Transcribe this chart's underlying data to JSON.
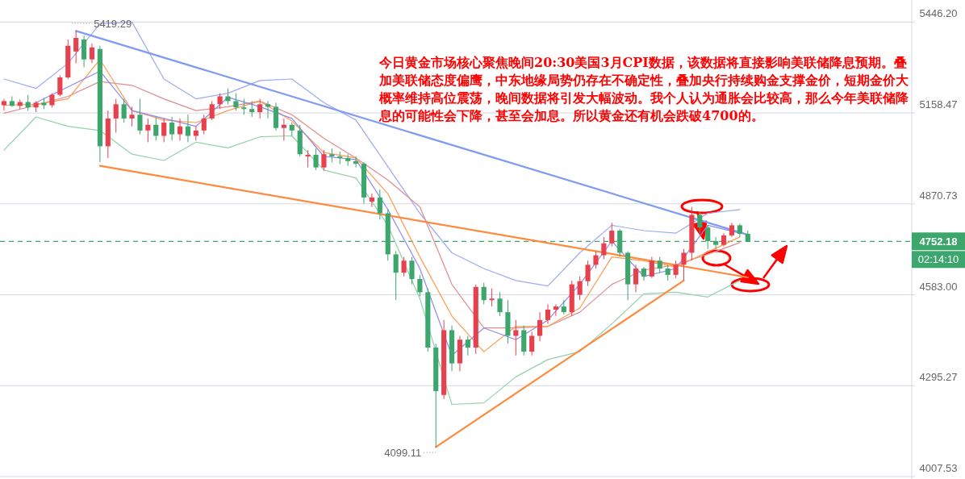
{
  "chart_data": {
    "type": "candlestick",
    "categories": [
      null,
      null,
      null,
      null,
      null,
      null,
      null,
      null,
      null,
      null,
      null,
      null,
      null,
      null,
      null,
      null,
      null,
      null,
      null,
      null,
      null,
      null,
      null,
      null,
      null,
      null,
      null,
      null,
      null,
      null,
      null,
      null,
      null,
      null,
      null,
      null,
      null,
      null,
      null,
      null,
      null,
      null,
      null,
      null,
      null,
      null,
      null,
      null,
      null,
      null,
      null,
      null,
      null,
      null,
      null,
      null,
      null,
      null,
      null,
      null,
      null,
      null,
      null,
      null,
      null,
      null,
      null,
      null,
      null,
      null,
      null,
      null,
      null,
      null,
      null,
      null,
      null,
      null,
      null,
      null,
      null,
      null,
      null,
      null,
      null,
      null,
      null,
      null,
      null,
      null,
      null,
      null,
      null,
      null,
      null,
      null,
      null,
      null,
      null,
      null,
      null,
      null,
      null,
      null,
      null,
      null,
      null,
      null,
      null,
      null,
      null,
      null,
      null,
      null
    ],
    "ohlc": [
      [
        5183,
        5203,
        5166,
        5196
      ],
      [
        5196,
        5211,
        5178,
        5181
      ],
      [
        5181,
        5201,
        5171,
        5193
      ],
      [
        5193,
        5216,
        5166,
        5176
      ],
      [
        5176,
        5196,
        5161,
        5191
      ],
      [
        5191,
        5206,
        5171,
        5183
      ],
      [
        5183,
        5221,
        5176,
        5216
      ],
      [
        5216,
        5278,
        5211,
        5271
      ],
      [
        5271,
        5391,
        5266,
        5371
      ],
      [
        5353,
        5419.29,
        5316,
        5396
      ],
      [
        5391,
        5403,
        5303,
        5328
      ],
      [
        5328,
        5378,
        5316,
        5366
      ],
      [
        5361,
        5371,
        5003,
        5053
      ],
      [
        5053,
        5166,
        5016,
        5141
      ],
      [
        5141,
        5203,
        5096,
        5186
      ],
      [
        5186,
        5203,
        5128,
        5141
      ],
      [
        5141,
        5178,
        5116,
        5153
      ],
      [
        5153,
        5203,
        5091,
        5103
      ],
      [
        5103,
        5141,
        5066,
        5121
      ],
      [
        5121,
        5146,
        5071,
        5086
      ],
      [
        5086,
        5141,
        5066,
        5128
      ],
      [
        5128,
        5146,
        5071,
        5091
      ],
      [
        5091,
        5141,
        5071,
        5116
      ],
      [
        5116,
        5153,
        5066,
        5086
      ],
      [
        5086,
        5116,
        5071,
        5103
      ],
      [
        5103,
        5153,
        5091,
        5141
      ],
      [
        5141,
        5196,
        5136,
        5186
      ],
      [
        5186,
        5221,
        5171,
        5211
      ],
      [
        5211,
        5236,
        5186,
        5196
      ],
      [
        5196,
        5221,
        5166,
        5176
      ],
      [
        5176,
        5203,
        5153,
        5171
      ],
      [
        5171,
        5196,
        5146,
        5161
      ],
      [
        5161,
        5203,
        5141,
        5186
      ],
      [
        5186,
        5196,
        5141,
        5178
      ],
      [
        5178,
        5191,
        5103,
        5111
      ],
      [
        5111,
        5141,
        5071,
        5121
      ],
      [
        5121,
        5128,
        5086,
        5103
      ],
      [
        5103,
        5121,
        5021,
        5028
      ],
      [
        5021,
        5041,
        4986,
        5026
      ],
      [
        5026,
        5046,
        4978,
        4986
      ],
      [
        4986,
        5041,
        4976,
        5028
      ],
      [
        5028,
        5046,
        5003,
        5021
      ],
      [
        5021,
        5036,
        4996,
        5016
      ],
      [
        5016,
        5028,
        4991,
        5006
      ],
      [
        5006,
        5021,
        4986,
        4998
      ],
      [
        4998,
        5003,
        4871,
        4891
      ],
      [
        4878,
        4903,
        4861,
        4891
      ],
      [
        4891,
        4916,
        4821,
        4841
      ],
      [
        4841,
        4853,
        4691,
        4711
      ],
      [
        4711,
        4721,
        4566,
        4653
      ],
      [
        4653,
        4703,
        4641,
        4691
      ],
      [
        4691,
        4703,
        4616,
        4633
      ],
      [
        4633,
        4646,
        4578,
        4591
      ],
      [
        4591,
        4603,
        4403,
        4416
      ],
      [
        4416,
        4428,
        4099.11,
        4278
      ],
      [
        4266,
        4503,
        4253,
        4471
      ],
      [
        4471,
        4486,
        4341,
        4366
      ],
      [
        4366,
        4453,
        4341,
        4441
      ],
      [
        4441,
        4453,
        4391,
        4416
      ],
      [
        4416,
        4616,
        4396,
        4608
      ],
      [
        4608,
        4621,
        4553,
        4566
      ],
      [
        4566,
        4603,
        4546,
        4571
      ],
      [
        4571,
        4591,
        4516,
        4528
      ],
      [
        4528,
        4566,
        4428,
        4453
      ],
      [
        4453,
        4503,
        4391,
        4471
      ],
      [
        4471,
        4486,
        4391,
        4403
      ],
      [
        4403,
        4466,
        4391,
        4453
      ],
      [
        4453,
        4528,
        4436,
        4503
      ],
      [
        4503,
        4553,
        4491,
        4536
      ],
      [
        4536,
        4553,
        4516,
        4546
      ],
      [
        4546,
        4566,
        4521,
        4528
      ],
      [
        4528,
        4628,
        4516,
        4616
      ],
      [
        4583,
        4641,
        4566,
        4626
      ],
      [
        4626,
        4691,
        4611,
        4678
      ],
      [
        4678,
        4721,
        4666,
        4708
      ],
      [
        4708,
        4766,
        4696,
        4746
      ],
      [
        4746,
        4811,
        4736,
        4786
      ],
      [
        4786,
        4791,
        4703,
        4716
      ],
      [
        4716,
        4721,
        4566,
        4616
      ],
      [
        4616,
        4678,
        4591,
        4666
      ],
      [
        4666,
        4671,
        4628,
        4641
      ],
      [
        4641,
        4703,
        4636,
        4691
      ],
      [
        4691,
        4703,
        4653,
        4666
      ],
      [
        4666,
        4678,
        4628,
        4646
      ],
      [
        4646,
        4691,
        4636,
        4678
      ],
      [
        4678,
        4728,
        4628,
        4716
      ],
      [
        4716,
        4861,
        4691,
        4836
      ],
      [
        4836,
        4846,
        4778,
        4796
      ],
      [
        4796,
        4803,
        4728,
        4753
      ],
      [
        4753,
        4766,
        4728,
        4741
      ],
      [
        4741,
        4778,
        4736,
        4771
      ],
      [
        4771,
        4811,
        4766,
        4803
      ],
      [
        4803,
        4808,
        4766,
        4776
      ],
      [
        4776,
        4786,
        4750,
        4752.18
      ],
      null,
      null,
      null,
      null,
      null,
      null,
      null,
      null,
      null,
      null,
      null,
      null,
      null,
      null,
      null,
      null,
      null,
      null,
      null,
      null
    ],
    "colors": [
      "#e8414e",
      "#3da66d",
      "#e8414e",
      "#3da66d",
      "#e8414e",
      "#3da66d",
      "#e8414e",
      "#e8414e",
      "#e8414e",
      "#e8414e",
      "#3da66d",
      "#e8414e",
      "#3da66d",
      "#e8414e",
      "#e8414e",
      "#3da66d",
      "#e8414e",
      "#3da66d",
      "#e8414e",
      "#3da66d",
      "#e8414e",
      "#3da66d",
      "#e8414e",
      "#3da66d",
      "#e8414e",
      "#e8414e",
      "#e8414e",
      "#e8414e",
      "#3da66d",
      "#3da66d",
      "#3da66d",
      "#3da66d",
      "#e8414e",
      "#3da66d",
      "#3da66d",
      "#e8414e",
      "#3da66d",
      "#3da66d",
      "#e8414e",
      "#3da66d",
      "#e8414e",
      "#3da66d",
      "#3da66d",
      "#3da66d",
      "#3da66d",
      "#3da66d",
      "#e8414e",
      "#3da66d",
      "#3da66d",
      "#3da66d",
      "#e8414e",
      "#3da66d",
      "#3da66d",
      "#3da66d",
      "#3da66d",
      "#e8414e",
      "#3da66d",
      "#e8414e",
      "#3da66d",
      "#e8414e",
      "#3da66d",
      "#e8414e",
      "#3da66d",
      "#3da66d",
      "#e8414e",
      "#3da66d",
      "#e8414e",
      "#e8414e",
      "#e8414e",
      "#e8414e",
      "#3da66d",
      "#e8414e",
      "#e8414e",
      "#e8414e",
      "#e8414e",
      "#e8414e",
      "#e8414e",
      "#3da66d",
      "#3da66d",
      "#e8414e",
      "#3da66d",
      "#e8414e",
      "#3da66d",
      "#3da66d",
      "#e8414e",
      "#e8414e",
      "#e8414e",
      "#3da66d",
      "#3da66d",
      "#3da66d",
      "#e8414e",
      "#e8414e",
      "#3da66d",
      "#3da66d",
      null,
      null,
      null,
      null,
      null,
      null,
      null,
      null,
      null,
      null,
      null,
      null,
      null,
      null,
      null,
      null,
      null,
      null,
      null,
      null
    ],
    "series": [
      {
        "type": "line",
        "color": "#9daaf2",
        "values": [
          5266,
          null,
          null,
          null,
          5236,
          null,
          null,
          null,
          5316,
          null,
          null,
          null,
          5441,
          null,
          null,
          null,
          5446,
          null,
          null,
          null,
          5266,
          null,
          null,
          null,
          5203,
          null,
          null,
          null,
          5221,
          null,
          null,
          null,
          5261,
          null,
          null,
          null,
          5266,
          null,
          null,
          null,
          5191,
          null,
          null,
          null,
          5136,
          null,
          null,
          null,
          null,
          null,
          null,
          null,
          4841,
          null,
          null,
          null,
          4716,
          null,
          null,
          null,
          4666,
          null,
          null,
          null,
          4628,
          null,
          null,
          null,
          4611,
          null,
          null,
          null,
          4716,
          null,
          null,
          null,
          4803,
          null,
          null,
          null,
          4786,
          null,
          null,
          null,
          4778,
          null,
          null,
          null,
          4841,
          null,
          null,
          null,
          4853,
          null,
          null,
          null,
          null,
          null,
          null,
          null,
          null,
          null,
          null,
          null,
          null,
          null,
          null,
          null,
          null,
          null,
          null,
          null,
          null,
          null
        ]
      },
      {
        "type": "line",
        "color": "#93d1aa",
        "values": [
          5041,
          null,
          null,
          null,
          5146,
          null,
          null,
          null,
          5116,
          null,
          null,
          null,
          5103,
          null,
          null,
          null,
          5028,
          null,
          null,
          null,
          5008,
          null,
          null,
          null,
          5066,
          null,
          null,
          null,
          5048,
          null,
          null,
          null,
          5083,
          null,
          null,
          null,
          5086,
          null,
          null,
          null,
          4978,
          null,
          null,
          null,
          4953,
          null,
          null,
          null,
          4803,
          null,
          null,
          null,
          4571,
          null,
          null,
          null,
          4236,
          null,
          null,
          null,
          4241,
          null,
          null,
          null,
          4323,
          null,
          null,
          null,
          4378,
          null,
          null,
          null,
          4403,
          null,
          null,
          null,
          4491,
          null,
          null,
          null,
          4586,
          null,
          null,
          null,
          4591,
          null,
          null,
          null,
          4576,
          null,
          null,
          null,
          4628,
          null,
          null,
          null,
          null,
          null,
          null,
          null,
          null,
          null,
          null,
          null,
          null,
          null,
          null,
          null,
          null,
          null,
          null,
          null,
          null,
          null
        ]
      },
      {
        "type": "line",
        "color": "#df8d8d",
        "values": [
          5158,
          null,
          null,
          null,
          5183,
          null,
          null,
          null,
          5211,
          null,
          null,
          null,
          5258,
          null,
          null,
          null,
          5246,
          null,
          null,
          null,
          5203,
          null,
          null,
          null,
          5166,
          null,
          null,
          null,
          5178,
          null,
          null,
          null,
          5196,
          null,
          null,
          null,
          5153,
          null,
          null,
          null,
          5078,
          null,
          null,
          null,
          5016,
          null,
          null,
          null,
          4946,
          null,
          null,
          null,
          4861,
          null,
          null,
          null,
          4616,
          null,
          null,
          null,
          4478,
          null,
          null,
          null,
          4478,
          null,
          null,
          null,
          4483,
          null,
          null,
          null,
          4528,
          null,
          null,
          null,
          4616,
          null,
          null,
          null,
          4661,
          null,
          null,
          null,
          4678,
          null,
          null,
          null,
          4711,
          null,
          null,
          null,
          4748,
          null,
          null,
          null,
          null,
          null,
          null,
          null,
          null,
          null,
          null,
          null,
          null,
          null,
          null,
          null,
          null,
          null,
          null,
          null,
          null,
          null
        ]
      },
      {
        "type": "line",
        "color": "#ff9a52",
        "values": [
          5183,
          null,
          null,
          null,
          5186,
          null,
          null,
          null,
          5203,
          null,
          null,
          null,
          5328,
          null,
          null,
          null,
          5166,
          null,
          null,
          null,
          5136,
          null,
          null,
          null,
          5128,
          null,
          null,
          null,
          5166,
          null,
          null,
          null,
          5196,
          null,
          null,
          null,
          5133,
          null,
          null,
          null,
          5033,
          null,
          null,
          null,
          5016,
          null,
          null,
          null,
          4903,
          null,
          null,
          null,
          4703,
          null,
          null,
          null,
          4516,
          null,
          null,
          null,
          4403,
          null,
          null,
          null,
          4483,
          null,
          null,
          null,
          4483,
          null,
          null,
          null,
          4541,
          null,
          null,
          null,
          4703,
          null,
          null,
          null,
          4691,
          null,
          null,
          null,
          4671,
          null,
          null,
          null,
          null,
          null,
          null,
          null,
          4766,
          null,
          null,
          null,
          null,
          null,
          null,
          null,
          null,
          null,
          null,
          null,
          null,
          null,
          null,
          null,
          null,
          null,
          null,
          null,
          null,
          null
        ]
      },
      {
        "type": "line",
        "color": "#8d8af2",
        "values": [
          null,
          null,
          null,
          null,
          5191,
          null,
          null,
          null,
          5241,
          null,
          null,
          null,
          5291,
          null,
          null,
          null,
          5166,
          null,
          null,
          null,
          5141,
          null,
          null,
          null,
          5116,
          null,
          null,
          null,
          5208,
          null,
          null,
          null,
          5178,
          null,
          null,
          null,
          5141,
          null,
          null,
          null,
          5021,
          null,
          null,
          null,
          5011,
          null,
          null,
          null,
          4853,
          null,
          null,
          null,
          4666,
          null,
          null,
          null,
          4391,
          null,
          null,
          null,
          4478,
          null,
          null,
          null,
          4441,
          null,
          null,
          null,
          4503,
          null,
          null,
          null,
          4616,
          null,
          null,
          null,
          4753,
          null,
          null,
          null,
          4641,
          null,
          null,
          null,
          4666,
          null,
          null,
          null,
          4803,
          null,
          null,
          null,
          4778,
          null,
          null,
          null,
          null,
          null,
          null,
          null,
          null,
          null,
          null,
          null,
          null,
          null,
          null,
          null,
          null,
          null,
          null,
          null,
          null,
          null
        ]
      },
      {
        "type": "line",
        "color": "#7f9cf0",
        "values": [
          null,
          null,
          null,
          null,
          null,
          null,
          null,
          null,
          null,
          5418,
          null,
          null,
          null,
          null,
          null,
          null,
          null,
          null,
          null,
          null,
          null,
          null,
          null,
          null,
          null,
          null,
          null,
          null,
          null,
          null,
          null,
          null,
          null,
          null,
          null,
          null,
          null,
          null,
          null,
          null,
          null,
          null,
          null,
          null,
          null,
          null,
          null,
          null,
          null,
          null,
          null,
          null,
          null,
          null,
          null,
          null,
          null,
          null,
          null,
          null,
          null,
          null,
          null,
          null,
          null,
          null,
          null,
          null,
          null,
          null,
          null,
          null,
          null,
          null,
          null,
          null,
          null,
          null,
          null,
          null,
          null,
          null,
          null,
          null,
          null,
          null,
          null,
          null,
          null,
          null,
          null,
          null,
          null,
          4773,
          null,
          null,
          null,
          null,
          null,
          null,
          null,
          null,
          null,
          null,
          null,
          null,
          null,
          null,
          null,
          null,
          null,
          null,
          null,
          null
        ]
      },
      {
        "type": "line",
        "color": "#ff8a3d",
        "values": [
          null,
          null,
          null,
          null,
          null,
          null,
          null,
          null,
          null,
          null,
          null,
          null,
          4991,
          null,
          null,
          null,
          null,
          null,
          null,
          null,
          null,
          null,
          null,
          null,
          null,
          null,
          null,
          null,
          null,
          null,
          null,
          null,
          null,
          null,
          null,
          null,
          null,
          null,
          null,
          null,
          null,
          null,
          null,
          null,
          null,
          null,
          null,
          null,
          null,
          null,
          null,
          null,
          null,
          null,
          null,
          null,
          null,
          null,
          null,
          null,
          null,
          null,
          null,
          null,
          null,
          null,
          null,
          null,
          null,
          null,
          null,
          null,
          null,
          null,
          null,
          null,
          null,
          null,
          null,
          null,
          null,
          null,
          null,
          null,
          null,
          null,
          null,
          null,
          null,
          null,
          null,
          null,
          null,
          4638,
          null,
          null,
          null,
          null,
          null,
          null,
          null,
          null,
          null,
          null,
          null,
          null,
          null,
          null,
          null,
          null,
          null,
          null,
          null,
          null
        ]
      },
      {
        "type": "line",
        "color": "#ff8a3d",
        "values": [
          null,
          null,
          null,
          null,
          null,
          null,
          null,
          null,
          null,
          null,
          null,
          null,
          null,
          null,
          null,
          null,
          null,
          null,
          null,
          null,
          null,
          null,
          null,
          null,
          null,
          null,
          null,
          null,
          null,
          null,
          null,
          null,
          null,
          null,
          null,
          null,
          null,
          null,
          null,
          null,
          null,
          null,
          null,
          null,
          null,
          null,
          null,
          null,
          null,
          null,
          null,
          null,
          null,
          null,
          4101,
          null,
          null,
          null,
          null,
          null,
          null,
          null,
          null,
          null,
          null,
          null,
          null,
          null,
          null,
          null,
          null,
          null,
          null,
          null,
          null,
          null,
          null,
          null,
          null,
          null,
          null,
          null,
          null,
          null,
          null,
          4628,
          null,
          null,
          null,
          null,
          null,
          null,
          null,
          null,
          null,
          null,
          null,
          null,
          null,
          null,
          null,
          null,
          null,
          null,
          null,
          null,
          null,
          null,
          null,
          null,
          null,
          null,
          null,
          null
        ]
      }
    ],
    "ylim": [
      4000,
      5516
    ],
    "yticks": [
      {
        "value": 5446.2,
        "label": "5446.20"
      },
      5158.47,
      4870.73,
      {
        "value": 4583,
        "label": "4583.00"
      },
      4295.27,
      4007.53
    ],
    "grid": "y",
    "tick_labels": "y",
    "ref_lines": [
      {
        "axis": "y",
        "value": 4752.18,
        "label": "4752.18",
        "color": "#3da66d",
        "line_style": "dashed"
      }
    ],
    "annotations": [
      "今日黄金市场核心聚焦晚间20:30美国3月CPI数据，该数据将直接影响美联储降息预期。叠加美联储态度偏鹰，中东地缘局势仍存在不确定性，叠加央行持续购金支撑金价，短期金价大概率维持高位震荡，晚间数据将引发大幅波动。我个人认为通胀会比较高，那么今年美联储降息的可能性会下降，甚至会加息。所以黄金还有机会跌破4700的。",
      "5419.29",
      "4099.11",
      "02:14:10"
    ]
  }
}
